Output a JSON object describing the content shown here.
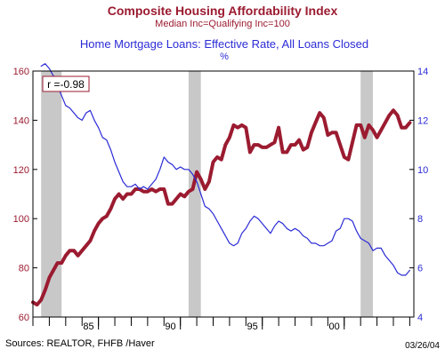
{
  "chart_data": {
    "type": "line",
    "title": "Composite Housing Affordability Index",
    "subtitle": "Median Inc=Qualifying Inc=100",
    "title2": "Home Mortgage Loans: Effective Rate, All Loans Closed",
    "title2_unit": "%",
    "annotation": "r =-0.98",
    "source": "Sources:  REALTOR, FHFB /Haver",
    "date": "03/26/04",
    "colors": {
      "left_series": "#9b1b30",
      "right_series": "#2b2bd6",
      "recession": "#c8c8c8",
      "title_left": "#9b1b30",
      "title_right": "#2b2bd6"
    },
    "xlim": [
      1981.0,
      2004.25
    ],
    "x_ticks": [
      {
        "value": 1985,
        "label": "85"
      },
      {
        "value": 1990,
        "label": "90"
      },
      {
        "value": 1995,
        "label": "95"
      },
      {
        "value": 2000,
        "label": "00"
      }
    ],
    "left_axis": {
      "ylim": [
        60,
        160
      ],
      "ticks": [
        60,
        80,
        100,
        120,
        140,
        160
      ]
    },
    "right_axis": {
      "ylim": [
        4,
        14
      ],
      "ticks": [
        4,
        6,
        8,
        10,
        12,
        14
      ]
    },
    "recessions": [
      [
        1981.5,
        1982.75
      ],
      [
        1990.5,
        1991.25
      ],
      [
        2001.0,
        2001.75
      ]
    ],
    "series": [
      {
        "axis": "left",
        "x": [
          1981.0,
          1981.25,
          1981.5,
          1981.75,
          1982.0,
          1982.25,
          1982.5,
          1982.75,
          1983.0,
          1983.25,
          1983.5,
          1983.75,
          1984.0,
          1984.25,
          1984.5,
          1984.75,
          1985.0,
          1985.25,
          1985.5,
          1985.75,
          1986.0,
          1986.25,
          1986.5,
          1986.75,
          1987.0,
          1987.25,
          1987.5,
          1987.75,
          1988.0,
          1988.25,
          1988.5,
          1988.75,
          1989.0,
          1989.25,
          1989.5,
          1989.75,
          1990.0,
          1990.25,
          1990.5,
          1990.75,
          1991.0,
          1991.25,
          1991.5,
          1991.75,
          1992.0,
          1992.25,
          1992.5,
          1992.75,
          1993.0,
          1993.25,
          1993.5,
          1993.75,
          1994.0,
          1994.25,
          1994.5,
          1994.75,
          1995.0,
          1995.25,
          1995.5,
          1995.75,
          1996.0,
          1996.25,
          1996.5,
          1996.75,
          1997.0,
          1997.25,
          1997.5,
          1997.75,
          1998.0,
          1998.25,
          1998.5,
          1998.75,
          1999.0,
          1999.25,
          1999.5,
          1999.75,
          2000.0,
          2000.25,
          2000.5,
          2000.75,
          2001.0,
          2001.25,
          2001.5,
          2001.75,
          2002.0,
          2002.25,
          2002.5,
          2002.75,
          2003.0,
          2003.25,
          2003.5,
          2003.75,
          2004.0
        ],
        "values": [
          66,
          65,
          67,
          71,
          76,
          79,
          82,
          82,
          85,
          87,
          87,
          85,
          87,
          89,
          91,
          95,
          98,
          100,
          101,
          104,
          108,
          110,
          108,
          110,
          110,
          112,
          112,
          111,
          111,
          112,
          111,
          112,
          112,
          106,
          106,
          108,
          110,
          109,
          111,
          112,
          119,
          116,
          112,
          115,
          123,
          125,
          124,
          130,
          133,
          138,
          137,
          138,
          137,
          127,
          130,
          130,
          129,
          129,
          130,
          131,
          137,
          127,
          127,
          130,
          130,
          132,
          128,
          129,
          135,
          139,
          143,
          141,
          134,
          135,
          135,
          130,
          125,
          124,
          131,
          138,
          138,
          133,
          138,
          136,
          133,
          136,
          139,
          142,
          144,
          142,
          137,
          137,
          139
        ]
      },
      {
        "axis": "right",
        "x": [
          1981.5,
          1981.75,
          1982.0,
          1982.25,
          1982.5,
          1982.75,
          1983.0,
          1983.25,
          1983.5,
          1983.75,
          1984.0,
          1984.25,
          1984.5,
          1984.75,
          1985.0,
          1985.25,
          1985.5,
          1985.75,
          1986.0,
          1986.25,
          1986.5,
          1986.75,
          1987.0,
          1987.25,
          1987.5,
          1987.75,
          1988.0,
          1988.25,
          1988.5,
          1988.75,
          1989.0,
          1989.25,
          1989.5,
          1989.75,
          1990.0,
          1990.25,
          1990.5,
          1990.75,
          1991.0,
          1991.25,
          1991.5,
          1991.75,
          1992.0,
          1992.25,
          1992.5,
          1992.75,
          1993.0,
          1993.25,
          1993.5,
          1993.75,
          1994.0,
          1994.25,
          1994.5,
          1994.75,
          1995.0,
          1995.25,
          1995.5,
          1995.75,
          1996.0,
          1996.25,
          1996.5,
          1996.75,
          1997.0,
          1997.25,
          1997.5,
          1997.75,
          1998.0,
          1998.25,
          1998.5,
          1998.75,
          1999.0,
          1999.25,
          1999.5,
          1999.75,
          2000.0,
          2000.25,
          2000.5,
          2000.75,
          2001.0,
          2001.25,
          2001.5,
          2001.75,
          2002.0,
          2002.25,
          2002.5,
          2002.75,
          2003.0,
          2003.25,
          2003.5,
          2003.75,
          2004.0
        ],
        "values": [
          14.2,
          14.3,
          14.1,
          13.8,
          13.4,
          13.0,
          12.6,
          12.5,
          12.3,
          12.1,
          12.0,
          12.3,
          12.4,
          12.0,
          11.7,
          11.3,
          11.2,
          10.8,
          10.3,
          9.9,
          9.5,
          9.3,
          9.3,
          9.4,
          9.2,
          9.3,
          9.2,
          9.4,
          9.6,
          10.0,
          10.5,
          10.3,
          10.2,
          10.0,
          10.1,
          10.0,
          10.0,
          9.8,
          9.5,
          9.0,
          8.5,
          8.4,
          8.2,
          7.9,
          7.6,
          7.3,
          7.0,
          6.9,
          7.0,
          7.4,
          7.6,
          7.9,
          8.1,
          8.0,
          7.8,
          7.6,
          7.4,
          7.7,
          7.9,
          7.8,
          7.6,
          7.5,
          7.6,
          7.5,
          7.3,
          7.2,
          7.0,
          7.0,
          6.9,
          6.9,
          7.0,
          7.1,
          7.5,
          7.6,
          8.0,
          8.0,
          7.9,
          7.5,
          7.2,
          7.1,
          7.0,
          6.7,
          6.8,
          6.8,
          6.5,
          6.3,
          6.1,
          5.8,
          5.7,
          5.7,
          5.9
        ]
      }
    ]
  }
}
